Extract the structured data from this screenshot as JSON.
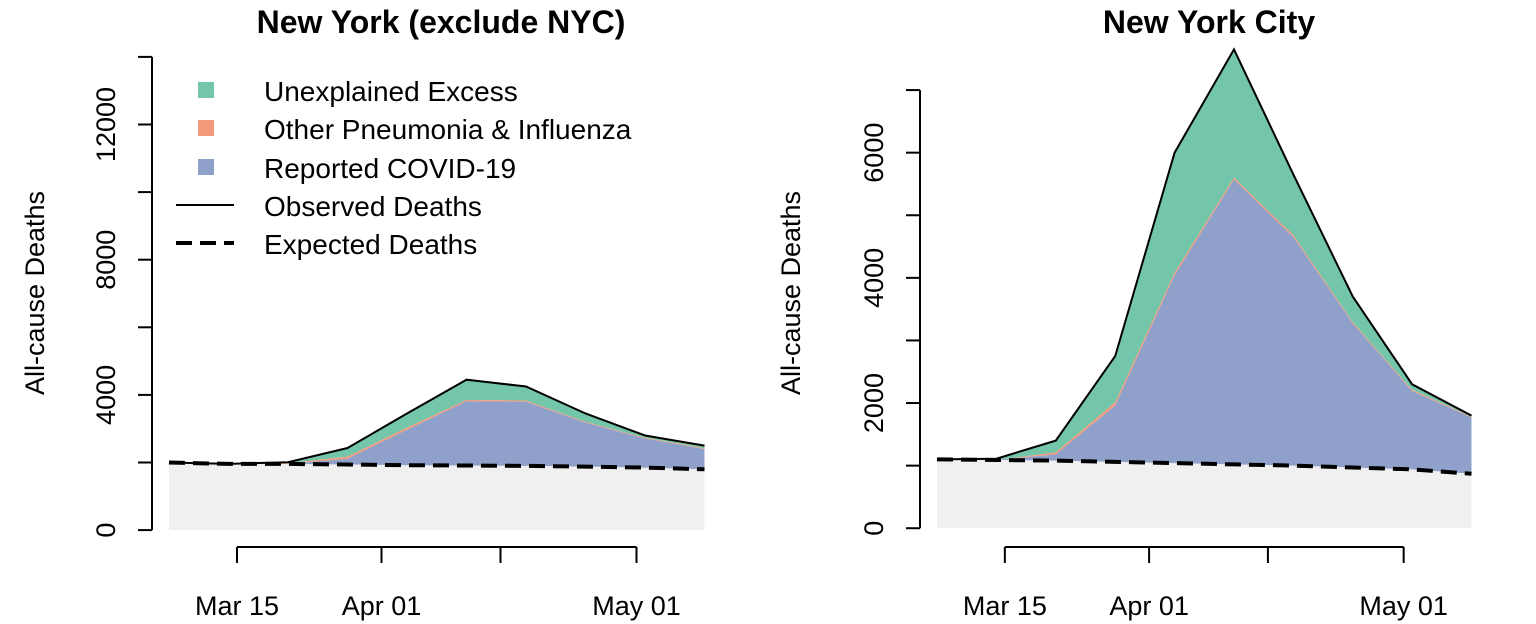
{
  "colors": {
    "unexplained_excess": "#74c6ab",
    "other_pneumonia_influenza": "#f4997a",
    "reported_covid": "#8fa0ca",
    "baseline_fill": "#f0f0f0",
    "line": "#000000"
  },
  "legend": {
    "items": [
      {
        "label": "Unexplained Excess",
        "kind": "square",
        "color": "#74c6ab"
      },
      {
        "label": "Other Pneumonia & Influenza",
        "kind": "square",
        "color": "#f4997a"
      },
      {
        "label": "Reported COVID-19",
        "kind": "square",
        "color": "#8fa0ca"
      },
      {
        "label": "Observed Deaths",
        "kind": "solid-line"
      },
      {
        "label": "Expected Deaths",
        "kind": "dashed-line"
      }
    ]
  },
  "chart_data": [
    {
      "type": "area",
      "title": "New York (exclude NYC)",
      "ylabel": "All-cause Deaths",
      "xlabel": "",
      "ylim": [
        -500,
        14500
      ],
      "yticks": [
        0,
        4000,
        8000,
        12000
      ],
      "yminor": [
        2000,
        6000,
        10000,
        14000
      ],
      "xlim": [
        "2020-03-05",
        "2020-05-12"
      ],
      "xticks_labeled": [
        {
          "date": "2020-03-15",
          "label": "Mar 15"
        },
        {
          "date": "2020-04-01",
          "label": "Apr 01"
        },
        {
          "date": "2020-05-01",
          "label": "May 01"
        }
      ],
      "xticks_unlabeled": [
        "2020-04-15"
      ],
      "x": [
        "2020-03-07",
        "2020-03-14",
        "2020-03-21",
        "2020-03-28",
        "2020-04-04",
        "2020-04-11",
        "2020-04-18",
        "2020-04-25",
        "2020-05-02",
        "2020-05-09"
      ],
      "series": [
        {
          "name": "Expected Deaths",
          "values": [
            2000,
            1960,
            1960,
            1940,
            1920,
            1910,
            1900,
            1880,
            1850,
            1800
          ]
        },
        {
          "name": "Reported COVID-19",
          "values": [
            0,
            0,
            0,
            170,
            1050,
            1900,
            1900,
            1300,
            860,
            600
          ]
        },
        {
          "name": "Other Pneumonia & Influenza",
          "values": [
            0,
            0,
            20,
            60,
            60,
            40,
            30,
            20,
            20,
            20
          ]
        },
        {
          "name": "Observed Deaths",
          "values": [
            2000,
            1850,
            2010,
            2430,
            3450,
            4450,
            4250,
            3450,
            2800,
            2500
          ]
        }
      ],
      "grid": false
    },
    {
      "type": "area",
      "title": "New York City",
      "ylabel": "All-cause Deaths",
      "xlabel": "",
      "ylim": [
        -300,
        7800
      ],
      "yticks": [
        0,
        2000,
        4000,
        6000
      ],
      "yminor": [
        1000,
        3000,
        5000,
        7000
      ],
      "xlim": [
        "2020-03-05",
        "2020-05-12"
      ],
      "xticks_labeled": [
        {
          "date": "2020-03-15",
          "label": "Mar 15"
        },
        {
          "date": "2020-04-01",
          "label": "Apr 01"
        },
        {
          "date": "2020-05-01",
          "label": "May 01"
        }
      ],
      "xticks_unlabeled": [
        "2020-04-15"
      ],
      "x": [
        "2020-03-07",
        "2020-03-14",
        "2020-03-21",
        "2020-03-28",
        "2020-04-04",
        "2020-04-11",
        "2020-04-18",
        "2020-04-25",
        "2020-05-02",
        "2020-05-09"
      ],
      "series": [
        {
          "name": "Expected Deaths",
          "values": [
            1100,
            1090,
            1080,
            1060,
            1040,
            1020,
            1000,
            970,
            940,
            870
          ]
        },
        {
          "name": "Reported COVID-19",
          "values": [
            0,
            0,
            100,
            900,
            3000,
            4550,
            3650,
            2300,
            1250,
            900
          ]
        },
        {
          "name": "Other Pneumonia & Influenza",
          "values": [
            0,
            0,
            30,
            50,
            40,
            30,
            30,
            20,
            20,
            10
          ]
        },
        {
          "name": "Observed Deaths",
          "values": [
            1100,
            1110,
            1400,
            2750,
            6000,
            7650,
            5650,
            3700,
            2300,
            1800
          ]
        }
      ],
      "grid": false
    }
  ]
}
